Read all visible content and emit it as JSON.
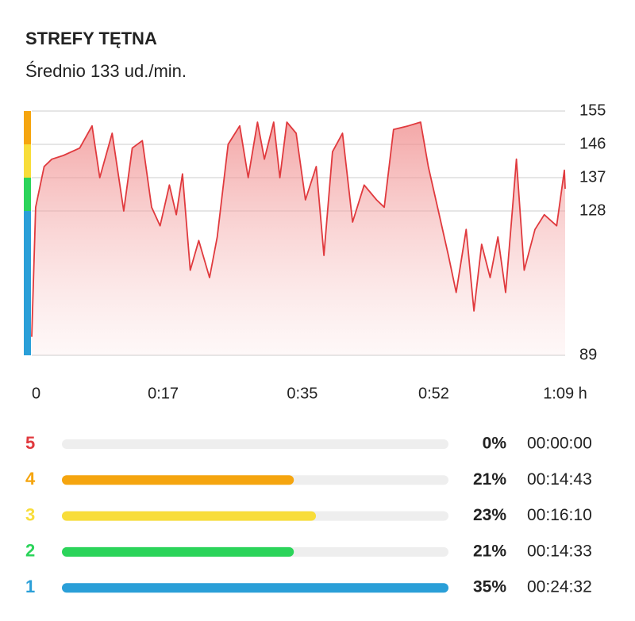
{
  "header": {
    "title": "STREFY TĘTNA",
    "subtitle": "Średnio 133 ud./min."
  },
  "chart_data": {
    "type": "area",
    "color": "#e03a3e",
    "x": [
      0,
      0.5,
      1.6,
      2.6,
      4.1,
      6.2,
      7.8,
      8.8,
      10.4,
      11.9,
      13.0,
      14.3,
      15.5,
      16.6,
      17.8,
      18.7,
      19.5,
      20.5,
      21.6,
      23.0,
      24.0,
      25.4,
      26.9,
      28.0,
      29.2,
      30.1,
      31.3,
      32.1,
      33.0,
      34.2,
      35.4,
      36.8,
      37.8,
      38.9,
      40.2,
      41.5,
      43.0,
      44.6,
      45.6,
      46.8,
      48.7,
      50.3,
      51.3,
      52.6,
      53.9,
      54.9,
      56.2,
      57.2,
      58.2,
      59.3,
      60.3,
      61.3,
      62.2,
      62.7,
      63.7,
      65.1,
      66.3,
      67.9,
      68.9,
      69
    ],
    "values": [
      94,
      129,
      140,
      142,
      143,
      145,
      151,
      137,
      149,
      128,
      145,
      147,
      129,
      124,
      135,
      127,
      138,
      112,
      120,
      110,
      121,
      146,
      151,
      137,
      152,
      142,
      152,
      137,
      152,
      149,
      131,
      140,
      116,
      144,
      149,
      125,
      135,
      131,
      129,
      150,
      151,
      152,
      140,
      128,
      116,
      106,
      123,
      101,
      119,
      110,
      121,
      106,
      129,
      142,
      112,
      123,
      127,
      124,
      139,
      134
    ],
    "xlim": [
      0,
      69
    ],
    "xticks": [
      {
        "value": 0,
        "label": "0"
      },
      {
        "value": 17,
        "label": "0:17"
      },
      {
        "value": 35,
        "label": "0:35"
      },
      {
        "value": 52,
        "label": "0:52"
      },
      {
        "value": 69,
        "label": "1:09 h"
      }
    ],
    "ylim": [
      89,
      155
    ],
    "yticks": [
      155,
      146,
      137,
      128,
      89
    ],
    "grid": true
  },
  "zones": [
    {
      "label": "5",
      "color": "#e0393e",
      "percent": 0,
      "percent_label": "0%",
      "time": "00:00:00"
    },
    {
      "label": "4",
      "color": "#f5a50f",
      "percent": 21,
      "percent_label": "21%",
      "time": "00:14:43"
    },
    {
      "label": "3",
      "color": "#f8dd3a",
      "percent": 23,
      "percent_label": "23%",
      "time": "00:16:10"
    },
    {
      "label": "2",
      "color": "#2bd45a",
      "percent": 21,
      "percent_label": "21%",
      "time": "00:14:33"
    },
    {
      "label": "1",
      "color": "#2a9fd8",
      "percent": 35,
      "percent_label": "35%",
      "time": "00:24:32"
    }
  ]
}
